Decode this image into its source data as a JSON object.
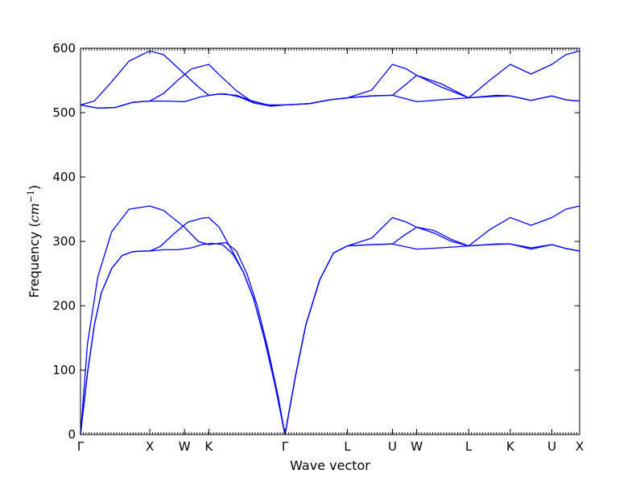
{
  "chart_data": {
    "type": "line",
    "title": "",
    "xlabel": "Wave vector",
    "ylabel_prefix": "Frequency (",
    "ylabel_unit": "cm",
    "ylabel_exponent": "−1",
    "ylabel_suffix": ")",
    "ylim": [
      0,
      600
    ],
    "xlim": [
      0,
      7.2
    ],
    "grid": false,
    "yticks": [
      "0",
      "100",
      "200",
      "300",
      "400",
      "500",
      "600"
    ],
    "xticks": [
      {
        "label": "Γ",
        "x": 0.0
      },
      {
        "label": "X",
        "x": 1.0
      },
      {
        "label": "W",
        "x": 1.5
      },
      {
        "label": "K",
        "x": 1.85
      },
      {
        "label": "Γ",
        "x": 2.95
      },
      {
        "label": "L",
        "x": 3.85
      },
      {
        "label": "U",
        "x": 4.5
      },
      {
        "label": "W",
        "x": 4.85
      },
      {
        "label": "L",
        "x": 5.6
      },
      {
        "label": "K",
        "x": 6.2
      },
      {
        "label": "U",
        "x": 6.8
      },
      {
        "label": "X",
        "x": 7.2
      }
    ],
    "series": [
      {
        "values": [
          [
            0,
            0
          ],
          [
            0.1,
            95
          ],
          [
            0.2,
            170
          ],
          [
            0.3,
            220
          ],
          [
            0.45,
            258
          ],
          [
            0.6,
            278
          ],
          [
            0.75,
            284
          ],
          [
            0.9,
            285
          ],
          [
            1.0,
            285
          ],
          [
            1.2,
            287
          ],
          [
            1.4,
            287
          ],
          [
            1.6,
            290
          ],
          [
            1.75,
            295
          ],
          [
            1.9,
            297
          ],
          [
            2.05,
            295
          ],
          [
            2.2,
            280
          ],
          [
            2.35,
            252
          ],
          [
            2.5,
            210
          ],
          [
            2.65,
            150
          ],
          [
            2.8,
            80
          ],
          [
            2.95,
            0
          ],
          [
            3.1,
            90
          ],
          [
            3.25,
            170
          ],
          [
            3.45,
            240
          ],
          [
            3.65,
            282
          ],
          [
            3.85,
            293
          ],
          [
            4.2,
            295
          ],
          [
            4.5,
            296
          ],
          [
            4.85,
            288
          ],
          [
            5.2,
            290
          ],
          [
            5.6,
            293
          ],
          [
            6.0,
            296
          ],
          [
            6.2,
            296
          ],
          [
            6.5,
            290
          ],
          [
            6.8,
            295
          ],
          [
            7.0,
            289
          ],
          [
            7.2,
            285
          ]
        ]
      },
      {
        "values": [
          [
            0,
            0
          ],
          [
            0.1,
            95
          ],
          [
            0.2,
            170
          ],
          [
            0.3,
            220
          ],
          [
            0.45,
            258
          ],
          [
            0.6,
            278
          ],
          [
            0.75,
            284
          ],
          [
            0.9,
            285
          ],
          [
            1.0,
            285
          ],
          [
            1.15,
            292
          ],
          [
            1.35,
            312
          ],
          [
            1.55,
            330
          ],
          [
            1.75,
            336
          ],
          [
            1.85,
            337
          ],
          [
            2.0,
            322
          ],
          [
            2.2,
            283
          ],
          [
            2.35,
            252
          ],
          [
            2.5,
            210
          ],
          [
            2.65,
            150
          ],
          [
            2.8,
            80
          ],
          [
            2.95,
            0
          ],
          [
            3.1,
            90
          ],
          [
            3.25,
            170
          ],
          [
            3.45,
            240
          ],
          [
            3.65,
            282
          ],
          [
            3.85,
            293
          ],
          [
            4.2,
            305
          ],
          [
            4.5,
            337
          ],
          [
            4.7,
            330
          ],
          [
            4.85,
            322
          ],
          [
            5.1,
            317
          ],
          [
            5.35,
            303
          ],
          [
            5.6,
            293
          ],
          [
            5.9,
            318
          ],
          [
            6.2,
            337
          ],
          [
            6.5,
            325
          ],
          [
            6.8,
            337
          ],
          [
            7.0,
            350
          ],
          [
            7.2,
            355
          ]
        ]
      },
      {
        "values": [
          [
            0,
            0
          ],
          [
            0.1,
            140
          ],
          [
            0.25,
            245
          ],
          [
            0.45,
            315
          ],
          [
            0.7,
            350
          ],
          [
            1.0,
            355
          ],
          [
            1.2,
            348
          ],
          [
            1.5,
            322
          ],
          [
            1.7,
            300
          ],
          [
            1.85,
            295
          ],
          [
            2.0,
            297
          ],
          [
            2.1,
            298
          ],
          [
            2.25,
            285
          ],
          [
            2.4,
            250
          ],
          [
            2.55,
            200
          ],
          [
            2.7,
            135
          ],
          [
            2.85,
            60
          ],
          [
            2.95,
            0
          ],
          [
            3.1,
            90
          ],
          [
            3.25,
            170
          ],
          [
            3.45,
            240
          ],
          [
            3.65,
            282
          ],
          [
            3.85,
            293
          ],
          [
            4.2,
            295
          ],
          [
            4.5,
            296
          ],
          [
            4.65,
            308
          ],
          [
            4.85,
            322
          ],
          [
            5.1,
            313
          ],
          [
            5.35,
            300
          ],
          [
            5.6,
            293
          ],
          [
            5.9,
            295
          ],
          [
            6.2,
            296
          ],
          [
            6.5,
            288
          ],
          [
            6.8,
            295
          ],
          [
            7.0,
            289
          ],
          [
            7.2,
            285
          ]
        ]
      },
      {
        "values": [
          [
            0,
            512
          ],
          [
            0.25,
            507
          ],
          [
            0.5,
            508
          ],
          [
            0.75,
            516
          ],
          [
            1.0,
            518
          ],
          [
            1.25,
            518
          ],
          [
            1.5,
            517
          ],
          [
            1.75,
            525
          ],
          [
            2.0,
            529
          ],
          [
            2.25,
            527
          ],
          [
            2.5,
            517
          ],
          [
            2.75,
            511
          ],
          [
            2.95,
            512
          ],
          [
            3.3,
            514
          ],
          [
            3.6,
            520
          ],
          [
            3.85,
            523
          ],
          [
            4.2,
            526
          ],
          [
            4.5,
            527
          ],
          [
            4.85,
            517
          ],
          [
            5.2,
            520
          ],
          [
            5.6,
            523
          ],
          [
            6.0,
            527
          ],
          [
            6.2,
            526
          ],
          [
            6.5,
            519
          ],
          [
            6.8,
            526
          ],
          [
            7.0,
            520
          ],
          [
            7.2,
            518
          ]
        ]
      },
      {
        "values": [
          [
            0,
            512
          ],
          [
            0.25,
            507
          ],
          [
            0.5,
            508
          ],
          [
            0.75,
            516
          ],
          [
            1.0,
            518
          ],
          [
            1.2,
            530
          ],
          [
            1.4,
            550
          ],
          [
            1.6,
            568
          ],
          [
            1.85,
            575
          ],
          [
            2.0,
            559
          ],
          [
            2.25,
            534
          ],
          [
            2.45,
            519
          ],
          [
            2.7,
            512
          ],
          [
            2.95,
            512
          ],
          [
            3.3,
            514
          ],
          [
            3.6,
            520
          ],
          [
            3.85,
            523
          ],
          [
            4.2,
            535
          ],
          [
            4.5,
            575
          ],
          [
            4.7,
            568
          ],
          [
            4.85,
            558
          ],
          [
            5.2,
            540
          ],
          [
            5.6,
            523
          ],
          [
            5.9,
            550
          ],
          [
            6.2,
            575
          ],
          [
            6.5,
            560
          ],
          [
            6.8,
            575
          ],
          [
            7.0,
            590
          ],
          [
            7.2,
            596
          ]
        ]
      },
      {
        "values": [
          [
            0,
            512
          ],
          [
            0.2,
            518
          ],
          [
            0.45,
            548
          ],
          [
            0.7,
            580
          ],
          [
            1.0,
            596
          ],
          [
            1.2,
            590
          ],
          [
            1.45,
            565
          ],
          [
            1.7,
            540
          ],
          [
            1.85,
            527
          ],
          [
            2.0,
            529
          ],
          [
            2.1,
            529
          ],
          [
            2.3,
            524
          ],
          [
            2.5,
            515
          ],
          [
            2.75,
            510
          ],
          [
            2.95,
            512
          ],
          [
            3.3,
            514
          ],
          [
            3.6,
            520
          ],
          [
            3.85,
            523
          ],
          [
            4.2,
            526
          ],
          [
            4.5,
            527
          ],
          [
            4.65,
            540
          ],
          [
            4.85,
            558
          ],
          [
            5.2,
            545
          ],
          [
            5.6,
            523
          ],
          [
            5.9,
            525
          ],
          [
            6.2,
            526
          ],
          [
            6.5,
            519
          ],
          [
            6.8,
            526
          ],
          [
            7.0,
            520
          ],
          [
            7.2,
            518
          ]
        ]
      }
    ]
  }
}
